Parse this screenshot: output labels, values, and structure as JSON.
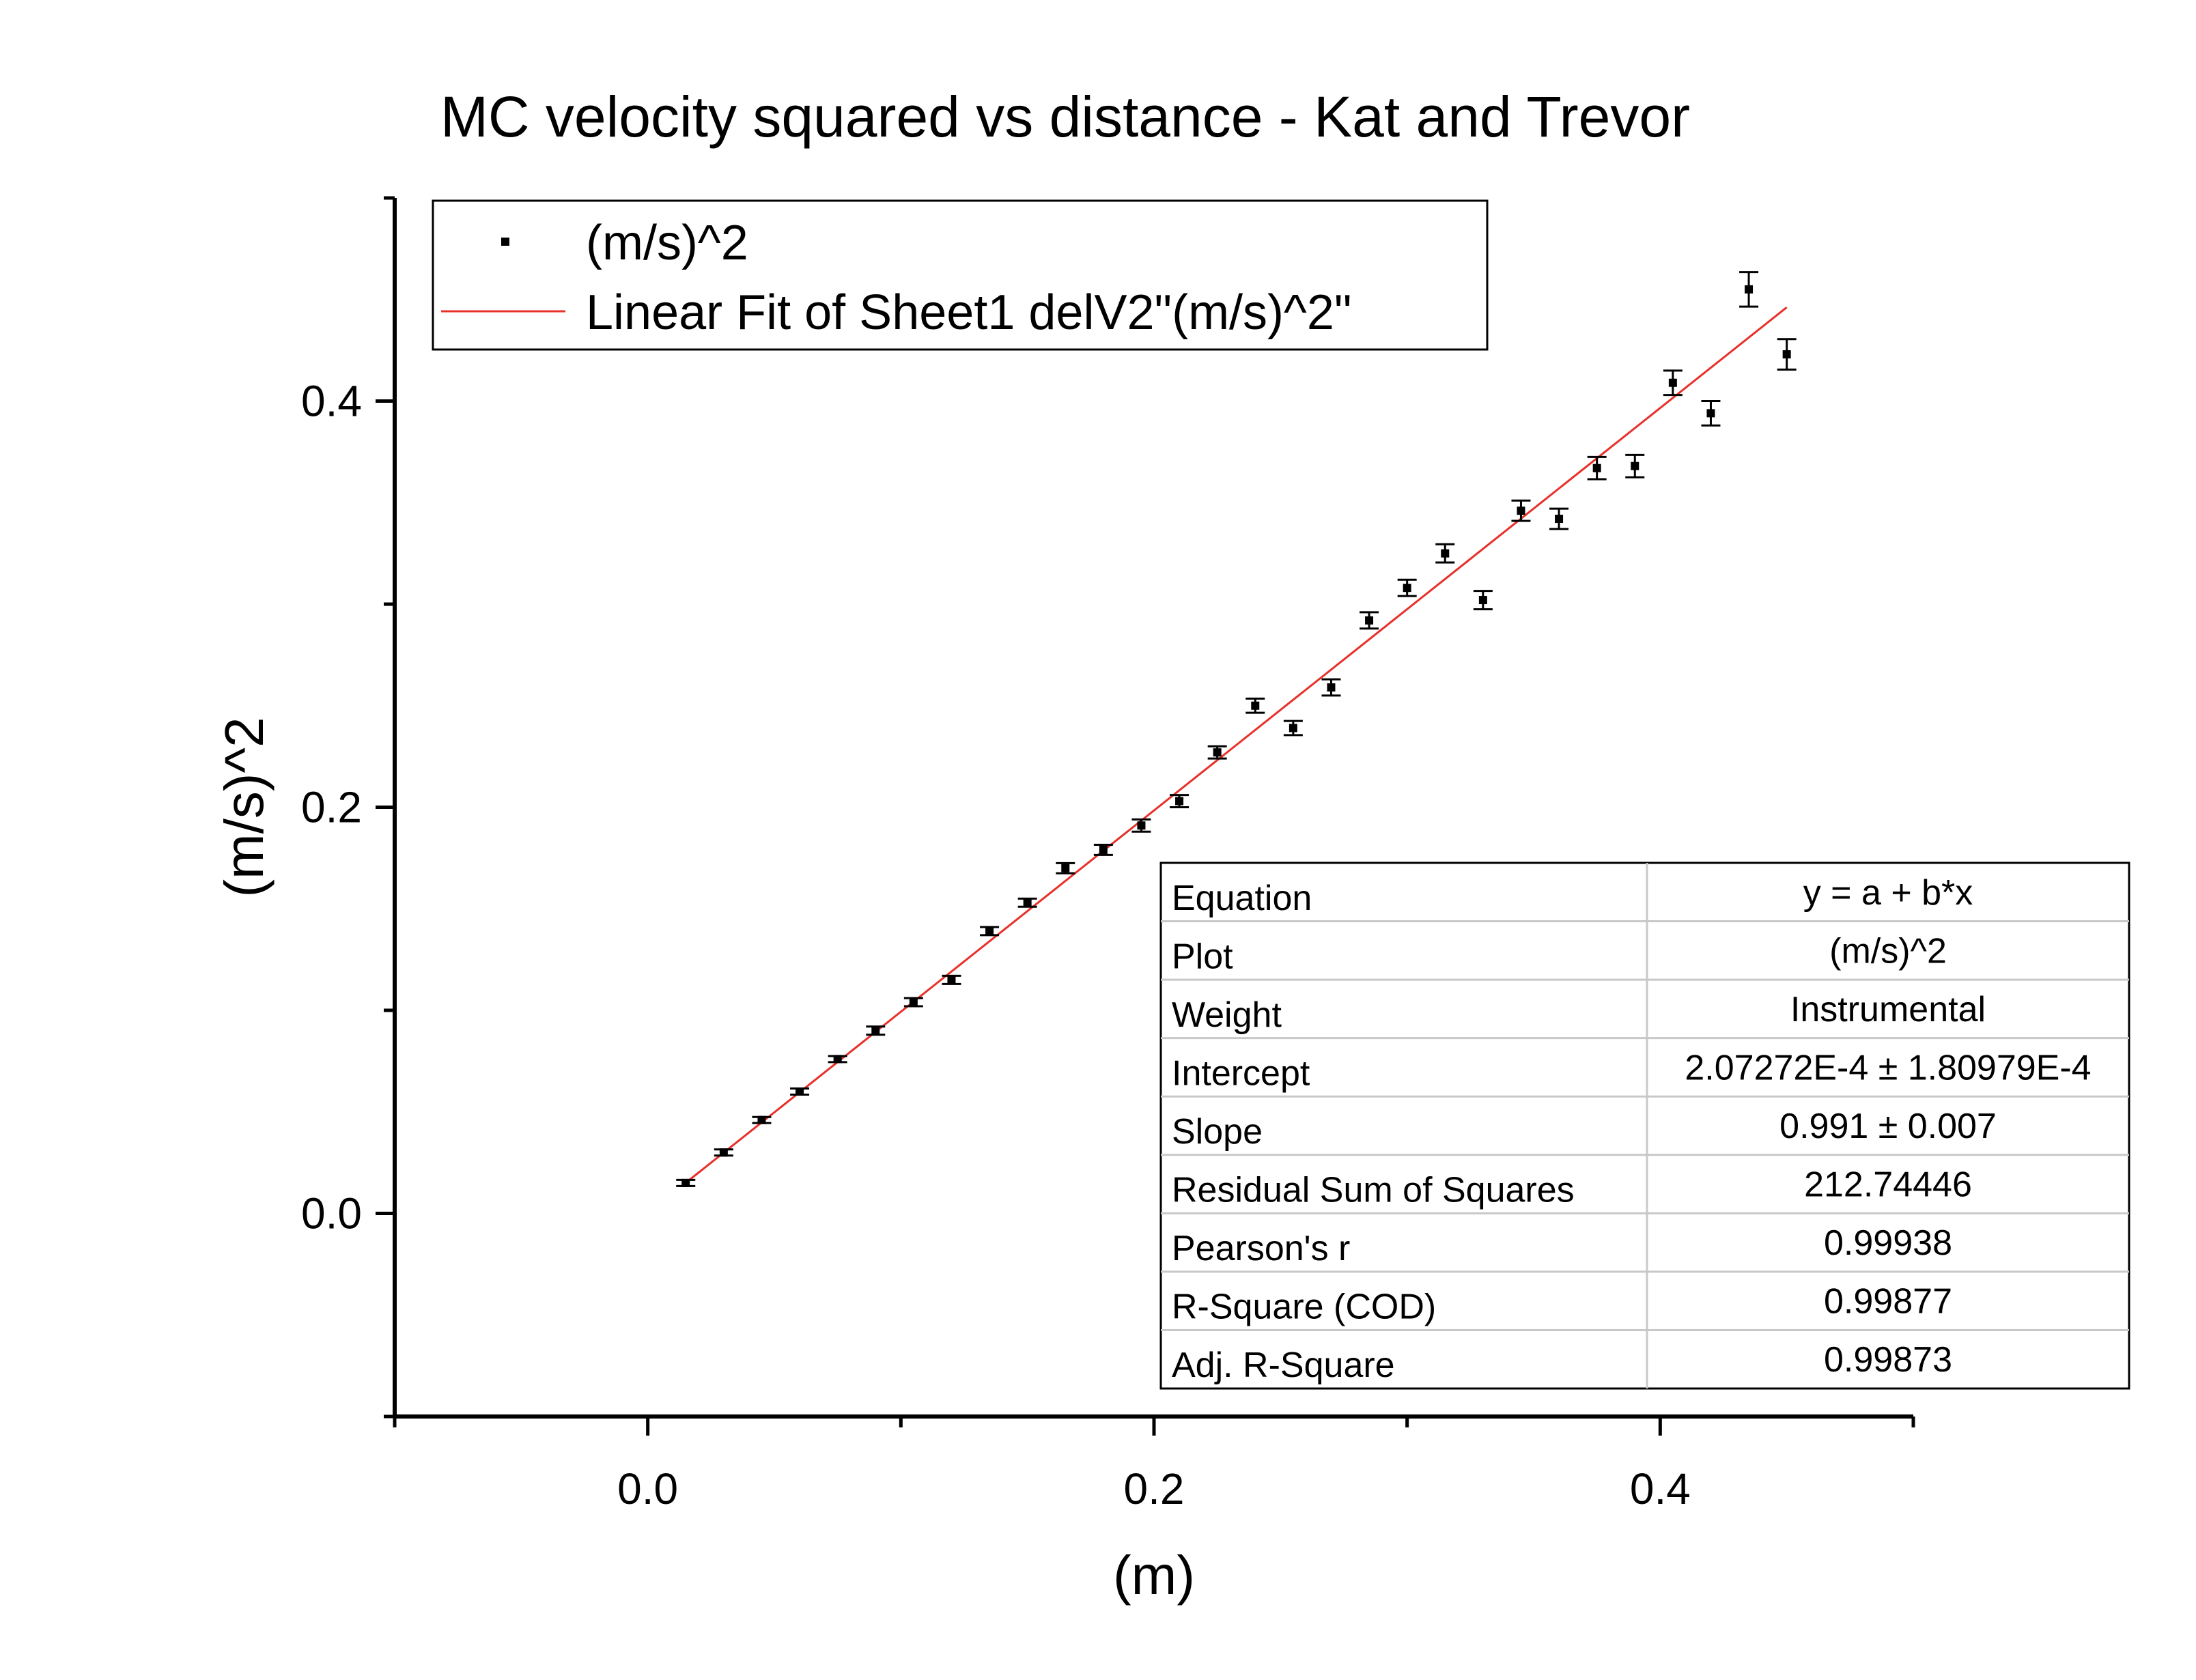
{
  "chart_data": {
    "type": "scatter",
    "title": "MC velocity squared vs distance - Kat and Trevor",
    "xlabel": "(m)",
    "ylabel": "(m/s)^2",
    "xlim": [
      -0.1,
      0.5
    ],
    "ylim": [
      -0.1,
      0.5
    ],
    "x_ticks": [
      {
        "value": 0.0,
        "label": "0.0"
      },
      {
        "value": 0.2,
        "label": "0.2"
      },
      {
        "value": 0.4,
        "label": "0.4"
      }
    ],
    "y_ticks": [
      {
        "value": 0.0,
        "label": "0.0"
      },
      {
        "value": 0.2,
        "label": "0.2"
      },
      {
        "value": 0.4,
        "label": "0.4"
      }
    ],
    "minor_x_ticks": [
      -0.1,
      0.1,
      0.3,
      0.5
    ],
    "minor_y_ticks": [
      -0.1,
      0.1,
      0.3,
      0.5
    ],
    "grid": false,
    "legend_position": "top-left",
    "series": [
      {
        "name": "(m/s)^2",
        "kind": "points-with-error-bars",
        "color": "#000000",
        "points": [
          {
            "x": 0.015,
            "y": 0.015,
            "err": 0.0015
          },
          {
            "x": 0.03,
            "y": 0.03,
            "err": 0.0015
          },
          {
            "x": 0.045,
            "y": 0.046,
            "err": 0.0015
          },
          {
            "x": 0.06,
            "y": 0.06,
            "err": 0.0015
          },
          {
            "x": 0.075,
            "y": 0.076,
            "err": 0.0015
          },
          {
            "x": 0.09,
            "y": 0.09,
            "err": 0.002
          },
          {
            "x": 0.105,
            "y": 0.104,
            "err": 0.002
          },
          {
            "x": 0.12,
            "y": 0.115,
            "err": 0.002
          },
          {
            "x": 0.135,
            "y": 0.139,
            "err": 0.002
          },
          {
            "x": 0.15,
            "y": 0.153,
            "err": 0.002
          },
          {
            "x": 0.165,
            "y": 0.17,
            "err": 0.0025
          },
          {
            "x": 0.18,
            "y": 0.179,
            "err": 0.0025
          },
          {
            "x": 0.195,
            "y": 0.191,
            "err": 0.003
          },
          {
            "x": 0.21,
            "y": 0.203,
            "err": 0.003
          },
          {
            "x": 0.225,
            "y": 0.227,
            "err": 0.003
          },
          {
            "x": 0.24,
            "y": 0.25,
            "err": 0.0035
          },
          {
            "x": 0.255,
            "y": 0.239,
            "err": 0.0035
          },
          {
            "x": 0.27,
            "y": 0.259,
            "err": 0.004
          },
          {
            "x": 0.285,
            "y": 0.292,
            "err": 0.004
          },
          {
            "x": 0.3,
            "y": 0.308,
            "err": 0.004
          },
          {
            "x": 0.315,
            "y": 0.325,
            "err": 0.0045
          },
          {
            "x": 0.33,
            "y": 0.302,
            "err": 0.0045
          },
          {
            "x": 0.345,
            "y": 0.346,
            "err": 0.005
          },
          {
            "x": 0.36,
            "y": 0.342,
            "err": 0.005
          },
          {
            "x": 0.375,
            "y": 0.367,
            "err": 0.0055
          },
          {
            "x": 0.39,
            "y": 0.368,
            "err": 0.0055
          },
          {
            "x": 0.405,
            "y": 0.409,
            "err": 0.006
          },
          {
            "x": 0.42,
            "y": 0.394,
            "err": 0.006
          },
          {
            "x": 0.435,
            "y": 0.455,
            "err": 0.0085
          },
          {
            "x": 0.45,
            "y": 0.423,
            "err": 0.0075
          }
        ]
      },
      {
        "name": "Linear Fit of Sheet1 delV2\"(m/s)^2\"",
        "kind": "line",
        "color": "#e8302a",
        "intercept": 0.000207272,
        "slope": 0.991,
        "x_range": [
          0.015,
          0.45
        ]
      }
    ],
    "stats_table": [
      {
        "label": "Equation",
        "value": "y = a + b*x"
      },
      {
        "label": "Plot",
        "value": "(m/s)^2"
      },
      {
        "label": "Weight",
        "value": "Instrumental"
      },
      {
        "label": "Intercept",
        "value": "2.07272E-4 ± 1.80979E-4"
      },
      {
        "label": "Slope",
        "value": "0.991 ± 0.007"
      },
      {
        "label": "Residual Sum of Squares",
        "value": "212.74446"
      },
      {
        "label": "Pearson's r",
        "value": "0.99938"
      },
      {
        "label": "R-Square (COD)",
        "value": "0.99877"
      },
      {
        "label": "Adj. R-Square",
        "value": "0.99873"
      }
    ]
  }
}
